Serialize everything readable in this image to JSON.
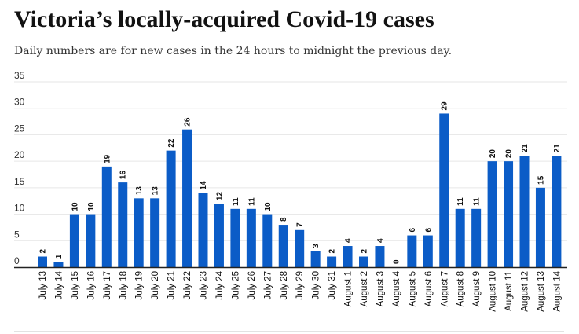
{
  "header": {
    "title": "Victoria’s locally-acquired Covid-19 cases",
    "subtitle": "Daily numbers are for new cases in the 24 hours to midnight the previous day."
  },
  "colors": {
    "bar": "#0b5cc7",
    "grid": "#e6e6e6",
    "axis": "#222222"
  },
  "chart_data": {
    "type": "bar",
    "title": "Victoria’s locally-acquired Covid-19 cases",
    "subtitle": "Daily numbers are for new cases in the 24 hours to midnight the previous day.",
    "categories": [
      "July 13",
      "July 14",
      "July 15",
      "July 16",
      "July 17",
      "July 18",
      "July 19",
      "July 20",
      "July 21",
      "July 22",
      "July 23",
      "July 24",
      "July 25",
      "July 26",
      "July 27",
      "July 28",
      "July 29",
      "July 30",
      "July 31",
      "August 1",
      "August 2",
      "August 3",
      "August 4",
      "August 5",
      "August 6",
      "August 7",
      "August 8",
      "August 9",
      "August 10",
      "August 11",
      "August 12",
      "August 13",
      "August 14"
    ],
    "values": [
      2,
      1,
      10,
      10,
      19,
      16,
      13,
      13,
      22,
      26,
      14,
      12,
      11,
      11,
      10,
      8,
      7,
      3,
      2,
      4,
      2,
      4,
      0,
      6,
      6,
      29,
      11,
      11,
      20,
      20,
      21,
      15,
      21
    ],
    "yticks": [
      0,
      5,
      10,
      15,
      20,
      25,
      30,
      35
    ],
    "ylim": [
      0,
      35
    ],
    "xlabel": "",
    "ylabel": "",
    "grid": true,
    "data_labels": true
  }
}
